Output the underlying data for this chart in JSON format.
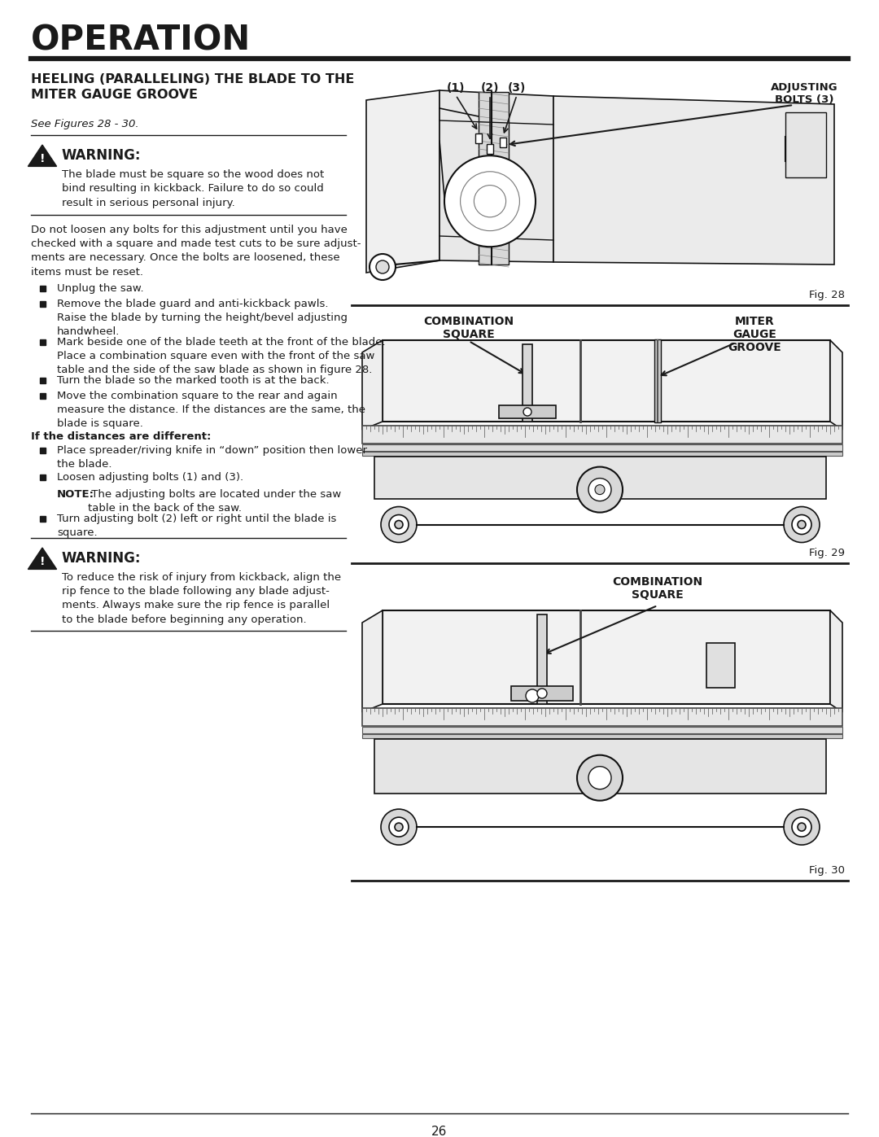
{
  "page_title": "OPERATION",
  "section_title": "HEELING (PARALLELING) THE BLADE TO THE\nMITER GAUGE GROOVE",
  "section_subtitle": "See Figures 28 - 30.",
  "warning1_title": "WARNING:",
  "warning1_text": "The blade must be square so the wood does not\nbind resulting in kickback. Failure to do so could\nresult in serious personal injury.",
  "intro_text": "Do not loosen any bolts for this adjustment until you have\nchecked with a square and made test cuts to be sure adjust-\nments are necessary. Once the bolts are loosened, these\nitems must be reset.",
  "bullets": [
    "Unplug the saw.",
    "Remove the blade guard and anti-kickback pawls.\nRaise the blade by turning the height/bevel adjusting\nhandwheel.",
    "Mark beside one of the blade teeth at the front of the blade.\nPlace a combination square even with the front of the saw\ntable and the side of the saw blade as shown in figure 28.",
    "Turn the blade so the marked tooth is at the back.",
    "Move the combination square to the rear and again\nmeasure the distance. If the distances are the same, the\nblade is square."
  ],
  "if_different_title": "If the distances are different:",
  "if_different_bullets": [
    "Place spreader/riving knife in “down” position then lower\nthe blade.",
    "Loosen adjusting bolts (1) and (3)."
  ],
  "note_label": "NOTE:",
  "note_text": " The adjusting bolts are located under the saw\ntable in the back of the saw.",
  "bullet_last": "Turn adjusting bolt (2) left or right until the blade is\nsquare.",
  "warning2_title": "WARNING:",
  "warning2_text": "To reduce the risk of injury from kickback, align the\nrip fence to the blade following any blade adjust-\nments. Always make sure the rip fence is parallel\nto the blade before beginning any operation.",
  "fig28_label": "Fig. 28",
  "fig29_label": "Fig. 29",
  "fig30_label": "Fig. 30",
  "fig28_lbl1": "(1)",
  "fig28_lbl2": "(2)",
  "fig28_lbl3": "(3)",
  "fig28_lbl4": "ADJUSTING\nBOLTS (3)",
  "fig29_lbl_left": "COMBINATION\nSQUARE",
  "fig29_lbl_right": "MITER\nGAUGE\nGROOVE",
  "fig30_lbl": "COMBINATION\nSQUARE",
  "page_number": "26",
  "bg_color": "#ffffff",
  "text_color": "#1a1a1a",
  "line_color": "#1a1a1a",
  "fig_line_color": "#111111"
}
